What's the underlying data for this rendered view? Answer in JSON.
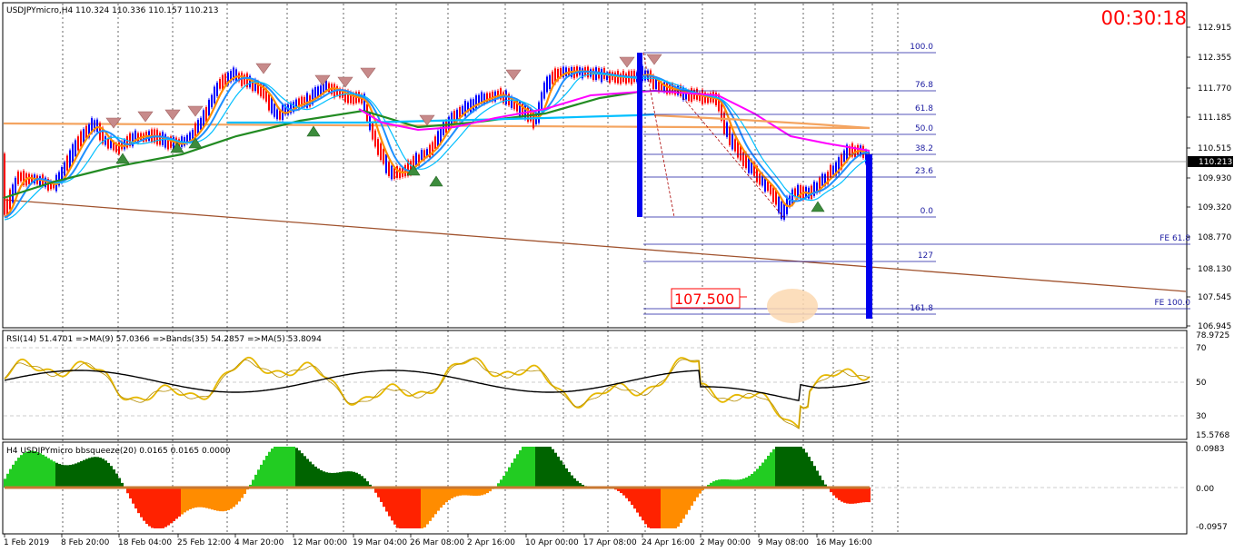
{
  "chart": {
    "header": "USDJPYmicro,H4  110.324 110.336 110.157 110.213",
    "countdown": "00:30:18",
    "current_price_label": "110.213",
    "target_label": "107.500",
    "price_axis": [
      "112.915",
      "112.355",
      "111.770",
      "111.185",
      "110.515",
      "109.930",
      "109.320",
      "108.770",
      "108.130",
      "107.545",
      "106.945"
    ],
    "fib_levels": [
      "100.0",
      "76.8",
      "61.8",
      "50.0",
      "38.2",
      "23.6",
      "0.0",
      "127",
      "161.8"
    ],
    "fe_labels": [
      "FE 61.8",
      "FE 100.0"
    ],
    "colors": {
      "up": "#0000ff",
      "down": "#ff0000",
      "ema_fast": "#ff8c00",
      "ema_mid": "#1e90ff",
      "ema_green": "#228b22",
      "ema_cyan": "#00bfff",
      "ema_magenta": "#ff00ff",
      "ema_tan": "#f4a460",
      "trendline": "#a0522d",
      "fib": "#1a1aa0"
    }
  },
  "rsi": {
    "header": "RSI(14) 51.4701  =>MA(9) 57.0366  =>Bands(35) 54.2857  =>MA(5) 53.8094",
    "axis": [
      "78.9725",
      "70",
      "50",
      "30",
      "15.5768"
    ]
  },
  "squeeze": {
    "header": "H4 USDJPYmicro bbsqueeze(20) 0.0165 0.0165 0.0000",
    "axis": [
      "0.0983",
      "0.00",
      "-0.0957"
    ]
  },
  "time_axis": [
    "1 Feb 2019",
    "8 Feb 20:00",
    "18 Feb 04:00",
    "25 Feb 12:00",
    "4 Mar 20:00",
    "12 Mar 00:00",
    "19 Mar 04:00",
    "26 Mar 08:00",
    "2 Apr 16:00",
    "10 Apr 00:00",
    "17 Apr 08:00",
    "24 Apr 16:00",
    "2 May 00:00",
    "9 May 08:00",
    "16 May 16:00"
  ]
}
